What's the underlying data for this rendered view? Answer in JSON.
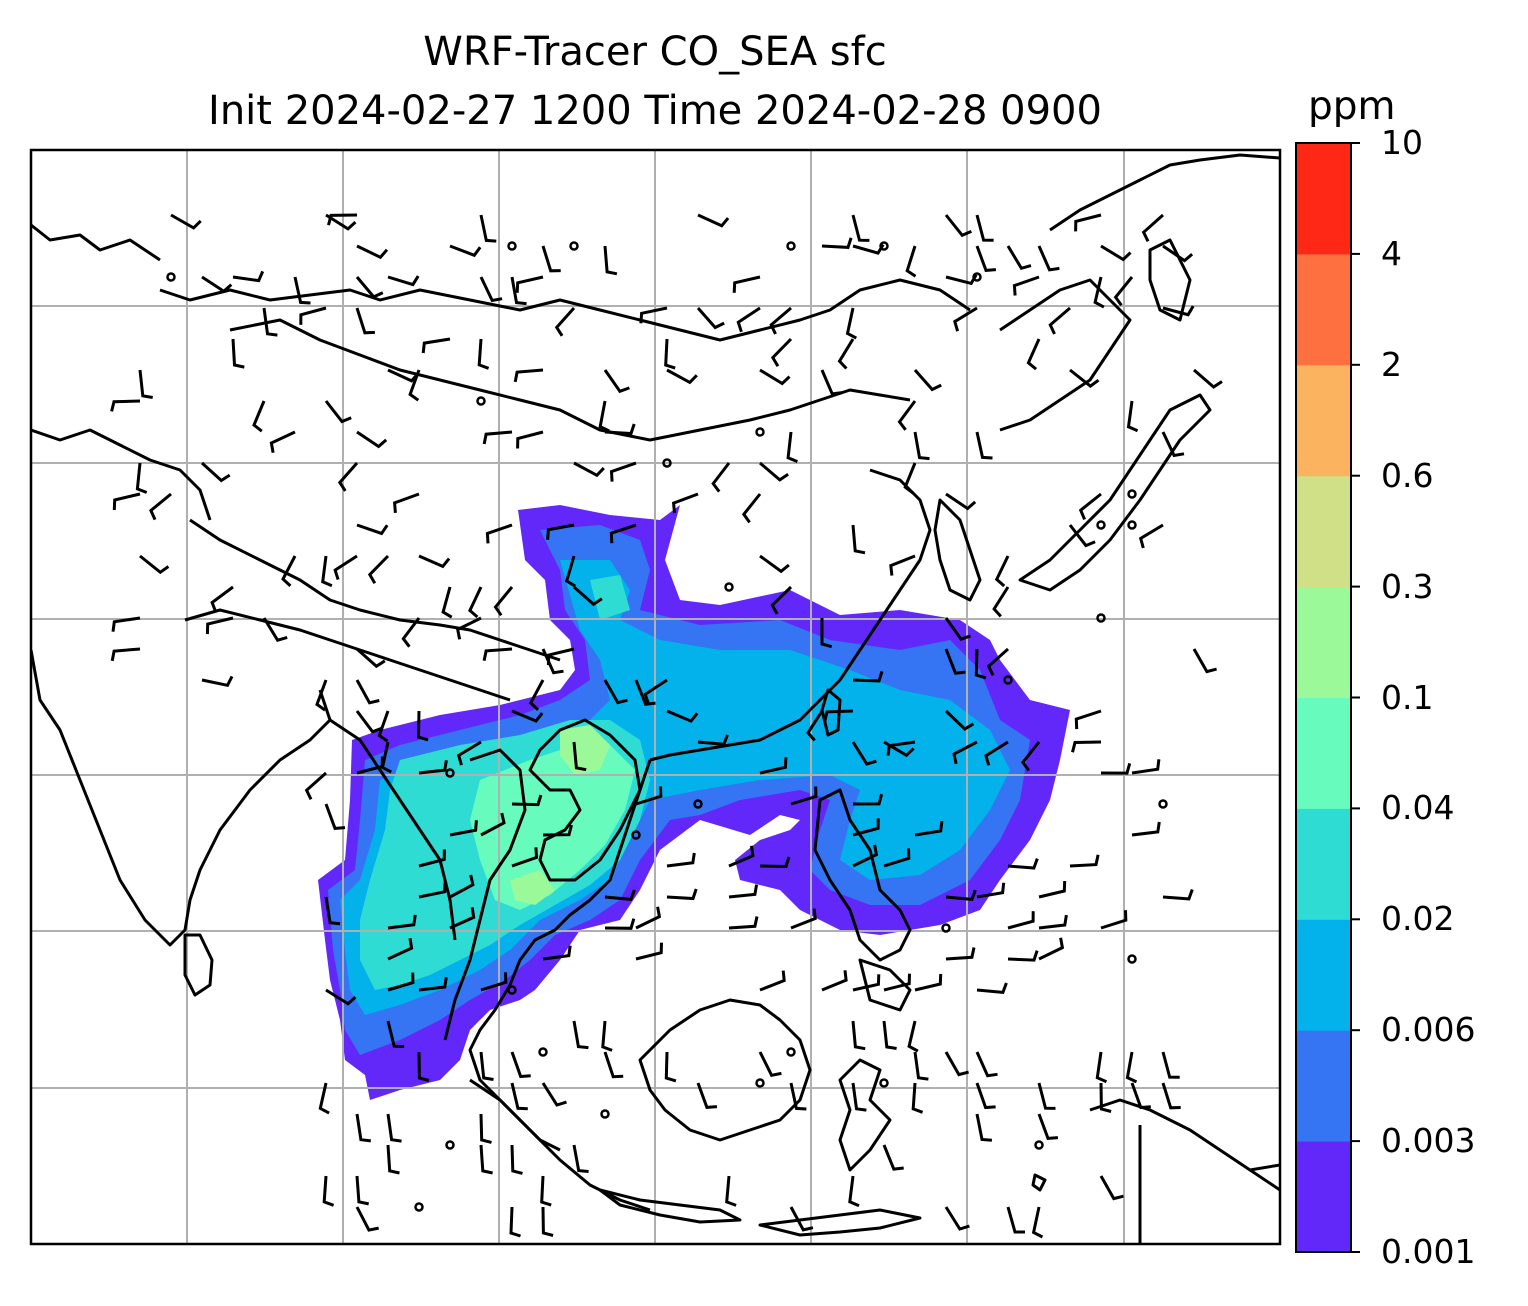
{
  "title": {
    "line1": "WRF-Tracer CO_SEA sfc",
    "line2": "Init 2024-02-27 1200 Time 2024-02-28 0900"
  },
  "colorbar": {
    "unit": "ppm",
    "ticks": [
      "0.001",
      "0.003",
      "0.006",
      "0.02",
      "0.04",
      "0.1",
      "0.3",
      "0.6",
      "2",
      "4",
      "10"
    ],
    "colors": [
      "#6228fa",
      "#3574f2",
      "#04b2eb",
      "#2edcd4",
      "#67fcbe",
      "#9cf99a",
      "#d0e086",
      "#fcb35f",
      "#fe7040",
      "#ff2816"
    ]
  },
  "map": {
    "field": "CO_SEA surface tracer concentration",
    "features": [
      "coastlines",
      "country-borders",
      "lat-lon-gridlines",
      "wind-barbs",
      "calm-wind-circles"
    ],
    "grid_color": "#b0b0b0"
  }
}
